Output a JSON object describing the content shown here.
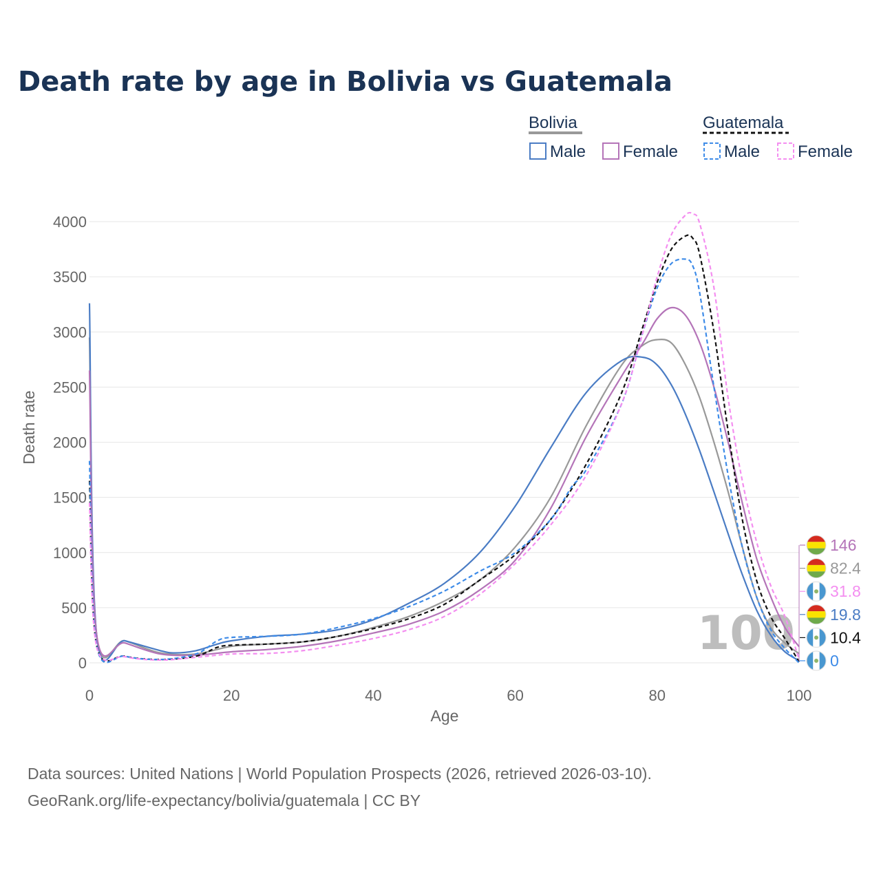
{
  "title": "Death rate by age in Bolivia vs Guatemala",
  "legend": {
    "groups": [
      {
        "label": "Bolivia",
        "underline_color": "#999999",
        "underline_dash": ""
      },
      {
        "label": "Guatemala",
        "underline_color": "#111111",
        "underline_dash": "6,4"
      }
    ],
    "items": [
      {
        "label": "Male",
        "color": "#4a7cc4",
        "dashed": false
      },
      {
        "label": "Female",
        "color": "#b474b8",
        "dashed": false
      },
      {
        "label": "Male",
        "color": "#3d8be8",
        "dashed": true
      },
      {
        "label": "Female",
        "color": "#f48ef0",
        "dashed": true
      }
    ]
  },
  "watermark": "100",
  "end_labels": [
    {
      "value": "146",
      "color": "#b474b8",
      "flag": "bolivia"
    },
    {
      "value": "82.4",
      "color": "#999999",
      "flag": "bolivia"
    },
    {
      "value": "31.8",
      "color": "#f48ef0",
      "flag": "guatemala"
    },
    {
      "value": "19.8",
      "color": "#4a7cc4",
      "flag": "bolivia"
    },
    {
      "value": "10.4",
      "color": "#111111",
      "flag": "guatemala"
    },
    {
      "value": "0",
      "color": "#3d8be8",
      "flag": "guatemala"
    }
  ],
  "source": {
    "line1": "Data sources: United Nations | World Population Prospects (2026, retrieved 2026-03-10).",
    "line2": "GeoRank.org/life-expectancy/bolivia/guatemala | CC BY"
  },
  "chart_data": {
    "type": "line",
    "title": "Death rate by age in Bolivia vs Guatemala",
    "xlabel": "Age",
    "ylabel": "Death rate",
    "xlim": [
      0,
      100
    ],
    "ylim": [
      0,
      4000
    ],
    "xticks": [
      0,
      20,
      40,
      60,
      80,
      100
    ],
    "yticks": [
      0,
      500,
      1000,
      1500,
      2000,
      2500,
      3000,
      3500,
      4000
    ],
    "grid": true,
    "series": [
      {
        "name": "Bolivia Total",
        "color": "#999999",
        "dash": "",
        "x": [
          0,
          1,
          5,
          10,
          15,
          20,
          25,
          30,
          35,
          40,
          45,
          50,
          55,
          60,
          65,
          70,
          75,
          78,
          80,
          82,
          84,
          86,
          88,
          90,
          92,
          94,
          96,
          98,
          100
        ],
        "y": [
          2950,
          260,
          200,
          90,
          80,
          150,
          170,
          190,
          240,
          320,
          420,
          560,
          750,
          1050,
          1500,
          2150,
          2700,
          2880,
          2930,
          2900,
          2700,
          2400,
          2000,
          1550,
          1050,
          600,
          320,
          180,
          82.4
        ]
      },
      {
        "name": "Bolivia Male",
        "color": "#4a7cc4",
        "dash": "",
        "x": [
          0,
          1,
          5,
          10,
          12,
          15,
          18,
          20,
          25,
          30,
          35,
          40,
          45,
          50,
          55,
          60,
          65,
          70,
          75,
          78,
          80,
          82,
          84,
          86,
          88,
          90,
          92,
          94,
          96,
          98,
          100
        ],
        "y": [
          3260,
          260,
          200,
          110,
          90,
          110,
          170,
          200,
          240,
          260,
          300,
          390,
          540,
          720,
          1000,
          1420,
          1950,
          2450,
          2740,
          2770,
          2700,
          2520,
          2250,
          1920,
          1550,
          1170,
          800,
          480,
          250,
          100,
          19.8
        ]
      },
      {
        "name": "Bolivia Female",
        "color": "#b474b8",
        "dash": "",
        "x": [
          0,
          1,
          5,
          10,
          15,
          20,
          25,
          30,
          35,
          40,
          45,
          50,
          55,
          60,
          65,
          70,
          75,
          78,
          80,
          82,
          84,
          86,
          88,
          90,
          92,
          94,
          96,
          98,
          100
        ],
        "y": [
          2650,
          260,
          180,
          80,
          70,
          100,
          120,
          150,
          200,
          270,
          350,
          470,
          660,
          930,
          1400,
          2050,
          2600,
          2900,
          3120,
          3220,
          3150,
          2900,
          2500,
          2000,
          1450,
          950,
          600,
          320,
          146
        ]
      },
      {
        "name": "Guatemala Total",
        "color": "#111111",
        "dash": "6,4",
        "x": [
          0,
          1,
          5,
          10,
          15,
          18,
          20,
          25,
          30,
          35,
          40,
          45,
          50,
          55,
          60,
          65,
          70,
          75,
          78,
          80,
          82,
          84,
          85,
          86,
          88,
          90,
          92,
          94,
          96,
          98,
          100
        ],
        "y": [
          1650,
          160,
          60,
          30,
          60,
          140,
          160,
          170,
          190,
          240,
          310,
          400,
          530,
          750,
          980,
          1300,
          1800,
          2450,
          3050,
          3450,
          3750,
          3870,
          3850,
          3700,
          3000,
          2100,
          1300,
          750,
          420,
          220,
          10.4
        ]
      },
      {
        "name": "Guatemala Male",
        "color": "#3d8be8",
        "dash": "6,4",
        "x": [
          0,
          1,
          5,
          10,
          15,
          18,
          20,
          25,
          30,
          35,
          40,
          45,
          50,
          55,
          60,
          65,
          68,
          70,
          75,
          78,
          80,
          82,
          84,
          85,
          86,
          88,
          90,
          92,
          94,
          96,
          98,
          100
        ],
        "y": [
          1830,
          160,
          60,
          30,
          80,
          200,
          230,
          240,
          260,
          320,
          400,
          510,
          650,
          830,
          1000,
          1300,
          1600,
          1750,
          2350,
          3000,
          3400,
          3620,
          3660,
          3600,
          3350,
          2500,
          1700,
          1050,
          600,
          300,
          130,
          0
        ]
      },
      {
        "name": "Guatemala Female",
        "color": "#f48ef0",
        "dash": "6,4",
        "x": [
          0,
          1,
          5,
          10,
          15,
          20,
          25,
          30,
          35,
          40,
          45,
          50,
          55,
          60,
          65,
          70,
          75,
          78,
          80,
          82,
          84,
          85,
          86,
          88,
          90,
          92,
          94,
          96,
          98,
          100
        ],
        "y": [
          1450,
          150,
          55,
          25,
          50,
          80,
          85,
          110,
          160,
          220,
          300,
          420,
          620,
          900,
          1250,
          1700,
          2350,
          3000,
          3500,
          3880,
          4060,
          4070,
          3980,
          3400,
          2400,
          1650,
          1100,
          700,
          420,
          31.8
        ]
      }
    ]
  }
}
